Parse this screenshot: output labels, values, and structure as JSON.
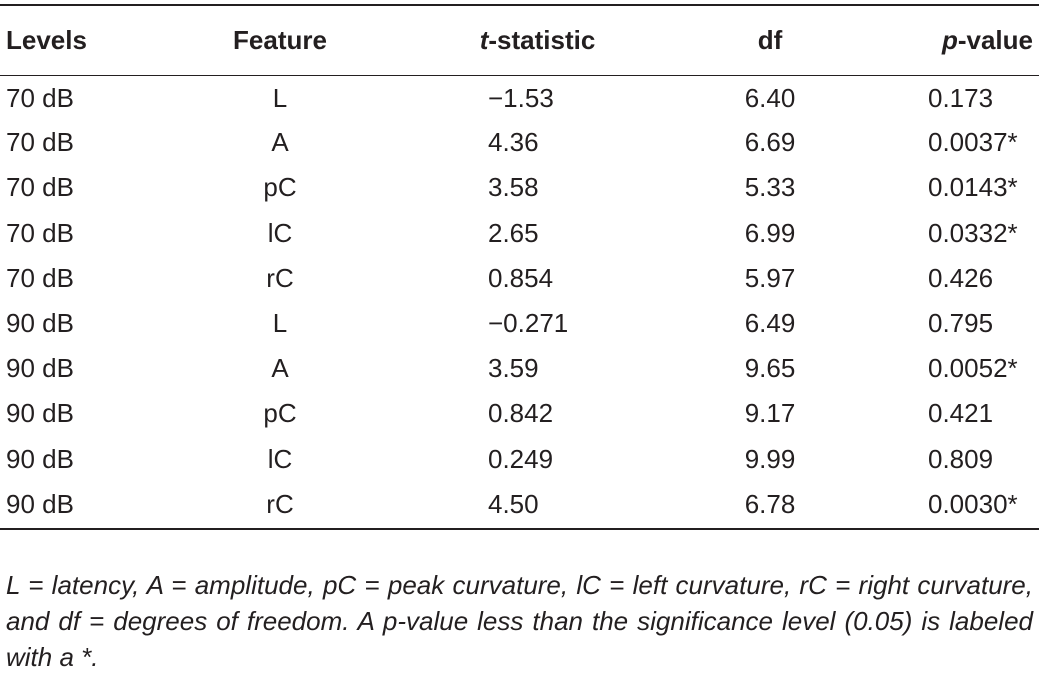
{
  "table": {
    "headers": {
      "levels": "Levels",
      "feature": "Feature",
      "tstat_italic": "t",
      "tstat_rest": "-statistic",
      "df": "df",
      "pvalue_italic": "p",
      "pvalue_rest": "-value"
    },
    "rows": [
      {
        "levels": "70 dB",
        "feature": "L",
        "tstat": "−1.53",
        "df": "6.40",
        "pvalue": "0.173"
      },
      {
        "levels": "70 dB",
        "feature": "A",
        "tstat": "4.36",
        "df": "6.69",
        "pvalue": "0.0037*"
      },
      {
        "levels": "70 dB",
        "feature": "pC",
        "tstat": "3.58",
        "df": "5.33",
        "pvalue": "0.0143*"
      },
      {
        "levels": "70 dB",
        "feature": "lC",
        "tstat": "2.65",
        "df": "6.99",
        "pvalue": "0.0332*"
      },
      {
        "levels": "70 dB",
        "feature": "rC",
        "tstat": "0.854",
        "df": "5.97",
        "pvalue": "0.426"
      },
      {
        "levels": "90 dB",
        "feature": "L",
        "tstat": "−0.271",
        "df": "6.49",
        "pvalue": "0.795"
      },
      {
        "levels": "90 dB",
        "feature": "A",
        "tstat": "3.59",
        "df": "9.65",
        "pvalue": "0.0052*"
      },
      {
        "levels": "90 dB",
        "feature": "pC",
        "tstat": "0.842",
        "df": "9.17",
        "pvalue": "0.421"
      },
      {
        "levels": "90 dB",
        "feature": "lC",
        "tstat": "0.249",
        "df": "9.99",
        "pvalue": "0.809"
      },
      {
        "levels": "90 dB",
        "feature": "rC",
        "tstat": "4.50",
        "df": "6.78",
        "pvalue": "0.0030*"
      }
    ]
  },
  "footnote": "L = latency, A = amplitude, pC = peak curvature, lC = left curvature, rC = right curvature, and df = degrees of freedom. A p-value less than the significance level (0.05) is labeled with a *."
}
